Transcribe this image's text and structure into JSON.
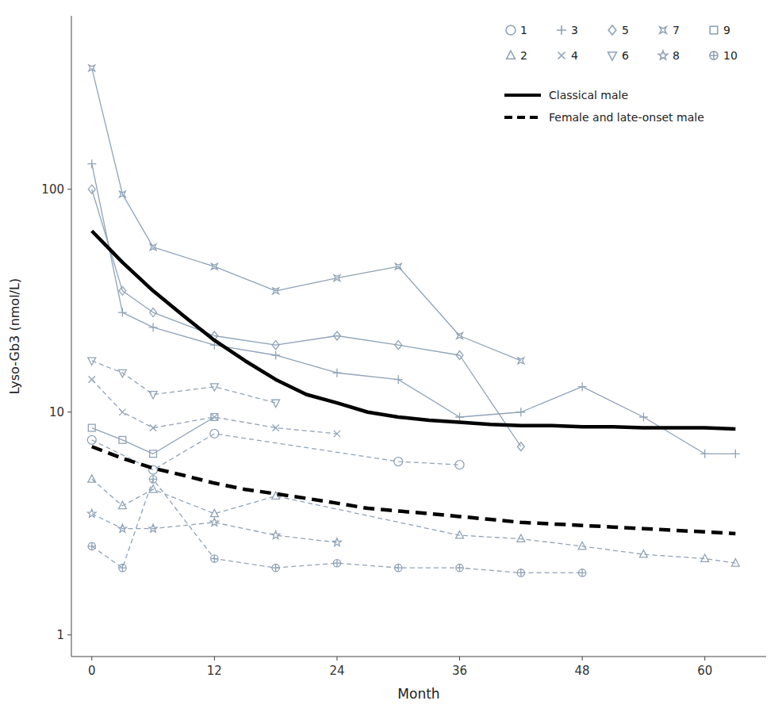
{
  "chart_data": {
    "type": "line",
    "xlabel": "Month",
    "ylabel": "Lyso-Gb3 (nmol/L)",
    "xlim": [
      -2,
      66
    ],
    "ylim": [
      0.8,
      600
    ],
    "xticks": [
      0,
      12,
      24,
      36,
      48,
      60
    ],
    "yticks": [
      1,
      10,
      100
    ],
    "log": "y",
    "grid": false,
    "legend": "upper right",
    "series": [
      {
        "name": "1",
        "color": "#8fa3b8",
        "marker": "circle",
        "line_style": "dashed",
        "x": [
          0,
          6,
          12,
          30,
          36
        ],
        "values": [
          7.5,
          5.5,
          8.0,
          6.0,
          5.8
        ]
      },
      {
        "name": "2",
        "color": "#8fa3b8",
        "marker": "triangle-up",
        "line_style": "dashed",
        "x": [
          0,
          3,
          6,
          12,
          18,
          36,
          42,
          48,
          54,
          60,
          63
        ],
        "values": [
          5.0,
          3.8,
          4.5,
          3.5,
          4.2,
          2.8,
          2.7,
          2.5,
          2.3,
          2.2,
          2.1
        ]
      },
      {
        "name": "3",
        "color": "#8fa3b8",
        "marker": "plus",
        "line_style": "solid",
        "x": [
          0,
          3,
          6,
          12,
          18,
          24,
          30,
          36,
          42,
          48,
          54,
          60,
          63
        ],
        "values": [
          130,
          28,
          24,
          20,
          18,
          15,
          14,
          9.5,
          10,
          13,
          9.5,
          6.5,
          6.5
        ]
      },
      {
        "name": "4",
        "color": "#8fa3b8",
        "marker": "x",
        "line_style": "dashed",
        "x": [
          0,
          3,
          6,
          12,
          18,
          24
        ],
        "values": [
          14,
          10,
          8.5,
          9.5,
          8.5,
          8.0
        ]
      },
      {
        "name": "5",
        "color": "#8fa3b8",
        "marker": "diamond",
        "line_style": "solid",
        "x": [
          0,
          3,
          6,
          12,
          18,
          24,
          30,
          36,
          42
        ],
        "values": [
          100,
          35,
          28,
          22,
          20,
          22,
          20,
          18,
          7.0
        ]
      },
      {
        "name": "6",
        "color": "#8fa3b8",
        "marker": "triangle-down",
        "line_style": "dashed",
        "x": [
          0,
          3,
          6,
          12,
          18
        ],
        "values": [
          17,
          15,
          12,
          13,
          11
        ]
      },
      {
        "name": "7",
        "color": "#8fa3b8",
        "marker": "star4",
        "line_style": "solid",
        "x": [
          0,
          3,
          6,
          12,
          18,
          24,
          30,
          36,
          42
        ],
        "values": [
          350,
          95,
          55,
          45,
          35,
          40,
          45,
          22,
          17
        ]
      },
      {
        "name": "8",
        "color": "#8fa3b8",
        "marker": "star",
        "line_style": "dashed",
        "x": [
          0,
          3,
          6,
          12,
          18,
          24
        ],
        "values": [
          3.5,
          3.0,
          3.0,
          3.2,
          2.8,
          2.6
        ]
      },
      {
        "name": "9",
        "color": "#8fa3b8",
        "marker": "square",
        "line_style": "solid",
        "x": [
          0,
          3,
          6,
          12
        ],
        "values": [
          8.5,
          7.5,
          6.5,
          9.5
        ]
      },
      {
        "name": "10",
        "color": "#8fa3b8",
        "marker": "circled-plus",
        "line_style": "dashed",
        "x": [
          0,
          3,
          6,
          12,
          18,
          24,
          30,
          36,
          42,
          48
        ],
        "values": [
          2.5,
          2.0,
          5.0,
          2.2,
          2.0,
          2.1,
          2.0,
          2.0,
          1.9,
          1.9
        ]
      },
      {
        "name": "Classical male",
        "color": "#000000",
        "marker": "none",
        "line_style": "solid",
        "x": [
          0,
          3,
          6,
          9,
          12,
          15,
          18,
          21,
          24,
          27,
          30,
          33,
          36,
          39,
          42,
          45,
          48,
          51,
          54,
          57,
          60,
          63
        ],
        "values": [
          65,
          47,
          35,
          27,
          21,
          17,
          14,
          12,
          11,
          10,
          9.5,
          9.2,
          9.0,
          8.8,
          8.7,
          8.7,
          8.6,
          8.6,
          8.5,
          8.5,
          8.5,
          8.4
        ]
      },
      {
        "name": "Female and late-onset male",
        "color": "#000000",
        "marker": "none",
        "line_style": "dashed",
        "x": [
          0,
          3,
          6,
          9,
          12,
          15,
          18,
          21,
          24,
          27,
          30,
          33,
          36,
          39,
          42,
          45,
          48,
          51,
          54,
          57,
          60,
          63
        ],
        "values": [
          7.0,
          6.2,
          5.6,
          5.2,
          4.8,
          4.5,
          4.3,
          4.1,
          3.9,
          3.7,
          3.6,
          3.5,
          3.4,
          3.3,
          3.2,
          3.15,
          3.1,
          3.05,
          3.0,
          2.95,
          2.9,
          2.85
        ]
      }
    ]
  }
}
